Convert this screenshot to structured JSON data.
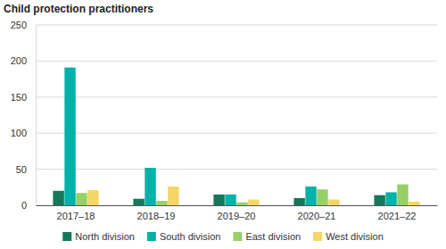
{
  "chart_data": {
    "type": "bar",
    "title": "Child protection practitioners",
    "categories": [
      "2017–18",
      "2018–19",
      "2019–20",
      "2020–21",
      "2021–22"
    ],
    "series": [
      {
        "name": "North division",
        "color": "#14785a",
        "values": [
          20,
          9,
          15,
          10,
          14
        ]
      },
      {
        "name": "South division",
        "color": "#00b2a9",
        "values": [
          191,
          52,
          15,
          26,
          18
        ]
      },
      {
        "name": "East division",
        "color": "#96d067",
        "values": [
          17,
          6,
          4,
          22,
          29
        ]
      },
      {
        "name": "West division",
        "color": "#f3d666",
        "values": [
          21,
          26,
          8,
          8,
          5
        ]
      }
    ],
    "ylim": [
      0,
      250
    ],
    "yticks": [
      0,
      50,
      100,
      150,
      200,
      250
    ],
    "grid": true,
    "legend": "bottom"
  }
}
